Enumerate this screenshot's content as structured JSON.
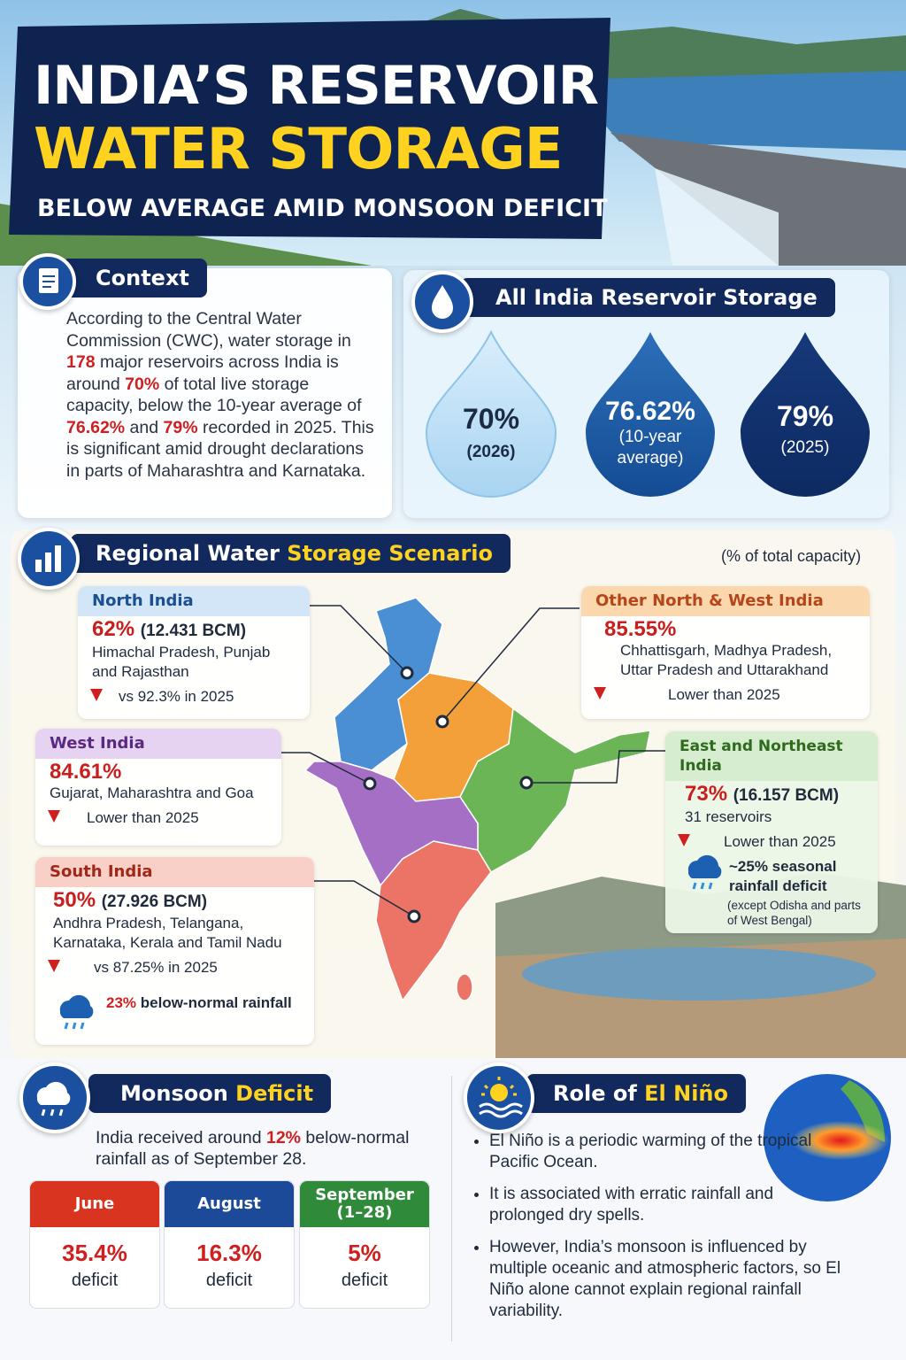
{
  "header": {
    "title_line1": "INDIA’S RESERVOIR",
    "title_line2": "WATER STORAGE",
    "subtitle": "BELOW AVERAGE AMID MONSOON DEFICIT"
  },
  "context": {
    "heading": "Context",
    "text": [
      "According to the Central Water Commission (CWC), water storage in ",
      "178",
      " major reservoirs across India is around ",
      "70%",
      " of total live storage capacity, below the 10-year average of ",
      "76.62%",
      " and ",
      "79%",
      " recorded in 2025. This is significant amid drought declarations in parts of Maharashtra and Karnataka."
    ]
  },
  "storage": {
    "heading": "All India Reservoir Storage",
    "drops": [
      {
        "value": "70%",
        "label": "(2026)"
      },
      {
        "value": "76.62%",
        "label": "(10-year average)"
      },
      {
        "value": "79%",
        "label": "(2025)"
      }
    ]
  },
  "regional": {
    "heading": [
      "Regional Water ",
      "Storage Scenario"
    ],
    "unit_note": "(% of total capacity)",
    "regions": [
      {
        "name": "North India",
        "value": "62%",
        "detail": "(12.431 BCM)",
        "states": "Himachal Pradesh, Punjab and Rajasthan",
        "comparison": "vs 92.3% in 2025"
      },
      {
        "name": "Other North & West India",
        "value": "85.55%",
        "states": "Chhattisgarh, Madhya Pradesh, Uttar Pradesh and Uttarakhand",
        "comparison": "Lower than 2025"
      },
      {
        "name": "West India",
        "value": "84.61%",
        "states": "Gujarat, Maharashtra and Goa",
        "comparison": "Lower than 2025"
      },
      {
        "name": "East and Northeast India",
        "value": "73%",
        "detail": "(16.157 BCM)",
        "states": "31 reservoirs",
        "comparison": "Lower than 2025",
        "rain_note": "~25% seasonal rainfall deficit",
        "rain_sub": "(except Odisha and parts of West Bengal)"
      },
      {
        "name": "South India",
        "value": "50%",
        "detail": "(27.926 BCM)",
        "states": "Andhra Pradesh, Telangana, Karnataka, Kerala and Tamil Nadu",
        "comparison": "vs 87.25% in 2025",
        "rain_note": [
          "23%",
          " below-normal rainfall"
        ]
      }
    ]
  },
  "monsoon": {
    "heading": [
      "Monsoon ",
      "Deficit"
    ],
    "text": [
      "India received around ",
      "12%",
      " below-normal rainfall as of September 28."
    ],
    "months": [
      {
        "month": "June",
        "value": "35.4%",
        "label": "deficit"
      },
      {
        "month": "August",
        "value": "16.3%",
        "label": "deficit"
      },
      {
        "month": "September (1–28)",
        "value": "5%",
        "label": "deficit"
      }
    ]
  },
  "el_nino": {
    "heading": [
      "Role of ",
      "El Niño"
    ],
    "bullets": [
      "El Niño is a periodic warming of the tropical Pacific Ocean.",
      "It is associated with erratic rainfall and prolonged dry spells.",
      "However, India’s monsoon is influenced by multiple oceanic and atmospheric factors, so El Niño alone cannot explain regional rainfall variability."
    ]
  }
}
